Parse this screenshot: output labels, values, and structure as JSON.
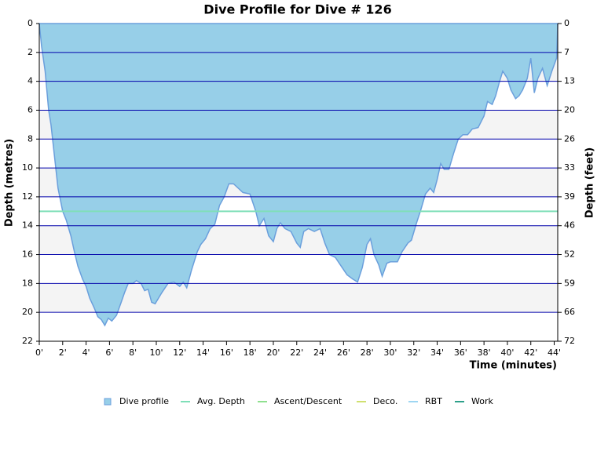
{
  "chart_data": {
    "type": "area",
    "title": "Dive Profile for Dive # 126",
    "xlabel": "Time (minutes)",
    "ylabel": "Depth (metres)",
    "y2label": "Depth (feet)",
    "xlim": [
      0,
      44.3
    ],
    "ylim": [
      0,
      22
    ],
    "y_reversed": true,
    "y2lim": [
      0,
      72.18
    ],
    "xticks": [
      {
        "value": 0,
        "label": "0'"
      },
      {
        "value": 2,
        "label": "2'"
      },
      {
        "value": 4,
        "label": "4'"
      },
      {
        "value": 6,
        "label": "6'"
      },
      {
        "value": 8,
        "label": "8'"
      },
      {
        "value": 10,
        "label": "10'"
      },
      {
        "value": 12,
        "label": "12'"
      },
      {
        "value": 14,
        "label": "14'"
      },
      {
        "value": 16,
        "label": "16'"
      },
      {
        "value": 18,
        "label": "18'"
      },
      {
        "value": 20,
        "label": "20'"
      },
      {
        "value": 22,
        "label": "22'"
      },
      {
        "value": 24,
        "label": "24'"
      },
      {
        "value": 26,
        "label": "26'"
      },
      {
        "value": 28,
        "label": "28'"
      },
      {
        "value": 30,
        "label": "30'"
      },
      {
        "value": 32,
        "label": "32'"
      },
      {
        "value": 34,
        "label": "34'"
      },
      {
        "value": 36,
        "label": "36'"
      },
      {
        "value": 38,
        "label": "38'"
      },
      {
        "value": 40,
        "label": "40'"
      },
      {
        "value": 42,
        "label": "42'"
      },
      {
        "value": 44,
        "label": "44'"
      }
    ],
    "yticks": [
      0,
      2,
      4,
      6,
      8,
      10,
      12,
      14,
      16,
      18,
      20,
      22
    ],
    "y2ticks": [
      0,
      {
        "value": 6.56,
        "label": "7"
      },
      {
        "value": 13.12,
        "label": "13"
      },
      {
        "value": 19.69,
        "label": "20"
      },
      {
        "value": 26.25,
        "label": "26"
      },
      {
        "value": 32.81,
        "label": "33"
      },
      {
        "value": 39.37,
        "label": "39"
      },
      {
        "value": 45.93,
        "label": "46"
      },
      {
        "value": 52.49,
        "label": "52"
      },
      {
        "value": 59.06,
        "label": "59"
      },
      {
        "value": 65.62,
        "label": "66"
      },
      {
        "value": 72.18,
        "label": "72"
      }
    ],
    "grid": true,
    "grid_color": "#0000aa",
    "band_color": "#f4f4f4",
    "series": [
      {
        "name": "Dive profile",
        "color": "#97cfe8",
        "line_color": "#6b9fdc",
        "x": [
          0,
          0.2,
          0.5,
          0.8,
          1,
          1.3,
          1.6,
          2,
          2.3,
          2.7,
          3,
          3.3,
          3.7,
          4,
          4.3,
          4.7,
          5,
          5.3,
          5.6,
          5.9,
          6.2,
          6.6,
          7,
          7.3,
          7.6,
          8,
          8.3,
          8.7,
          9,
          9.3,
          9.6,
          9.9,
          10.2,
          10.5,
          11,
          11.5,
          12,
          12.3,
          12.6,
          13,
          13.5,
          13.8,
          14.2,
          14.6,
          15,
          15.4,
          15.8,
          16.2,
          16.6,
          17,
          17.4,
          18,
          18.5,
          18.8,
          19.2,
          19.6,
          20,
          20.3,
          20.6,
          21,
          21.5,
          22,
          22.3,
          22.6,
          23,
          23.5,
          24,
          24.4,
          24.8,
          25.3,
          25.8,
          26.3,
          26.8,
          27.2,
          27.6,
          28,
          28.3,
          28.6,
          29,
          29.3,
          29.7,
          30,
          30.6,
          31,
          31.5,
          31.8,
          32.2,
          32.6,
          33,
          33.4,
          33.7,
          34,
          34.3,
          34.6,
          35,
          35.4,
          35.8,
          36.2,
          36.6,
          37,
          37.5,
          38,
          38.3,
          38.7,
          39,
          39.3,
          39.6,
          40,
          40.3,
          40.7,
          41,
          41.3,
          41.7,
          42,
          42.3,
          42.6,
          43,
          43.4,
          43.8,
          44.2,
          44.3
        ],
        "values": [
          0,
          1.6,
          3.3,
          6,
          7,
          9.2,
          11.4,
          13,
          13.6,
          14.7,
          15.8,
          16.8,
          17.7,
          18.2,
          19,
          19.7,
          20.3,
          20.5,
          20.9,
          20.4,
          20.6,
          20.2,
          19.3,
          18.6,
          18,
          18,
          17.8,
          18,
          18.5,
          18.4,
          19.3,
          19.4,
          19,
          18.6,
          18,
          17.9,
          18.2,
          17.9,
          18.3,
          17.1,
          15.8,
          15.3,
          14.9,
          14.2,
          13.9,
          12.6,
          12,
          11.1,
          11.1,
          11.4,
          11.7,
          11.8,
          13,
          14,
          13.5,
          14.7,
          15.1,
          14.2,
          13.8,
          14.2,
          14.4,
          15.2,
          15.5,
          14.4,
          14.2,
          14.4,
          14.2,
          15.2,
          16,
          16.2,
          16.8,
          17.4,
          17.7,
          17.9,
          16.9,
          15.3,
          14.9,
          16,
          16.7,
          17.5,
          16.6,
          16.5,
          16.5,
          15.8,
          15.2,
          15,
          13.9,
          12.9,
          11.8,
          11.4,
          11.7,
          10.8,
          9.7,
          10.1,
          10.1,
          9,
          8,
          7.7,
          7.7,
          7.3,
          7.2,
          6.4,
          5.4,
          5.6,
          5,
          4.1,
          3.3,
          3.8,
          4.6,
          5.2,
          5,
          4.6,
          3.8,
          2.4,
          4.8,
          3.8,
          3.1,
          4.3,
          3.3,
          2.4,
          0
        ]
      },
      {
        "name": "Avg. Depth",
        "color": "#7fdfb8",
        "x": [
          0,
          44.3
        ],
        "values": [
          13,
          13
        ]
      },
      {
        "name": "Ascent/Descent",
        "color": "#8fe08f",
        "x": [],
        "values": []
      },
      {
        "name": "Deco.",
        "color": "#d0e070",
        "x": [],
        "values": []
      },
      {
        "name": "RBT",
        "color": "#9ed6f2",
        "x": [],
        "values": []
      },
      {
        "name": "Work",
        "color": "#2ea08a",
        "x": [],
        "values": []
      }
    ]
  }
}
